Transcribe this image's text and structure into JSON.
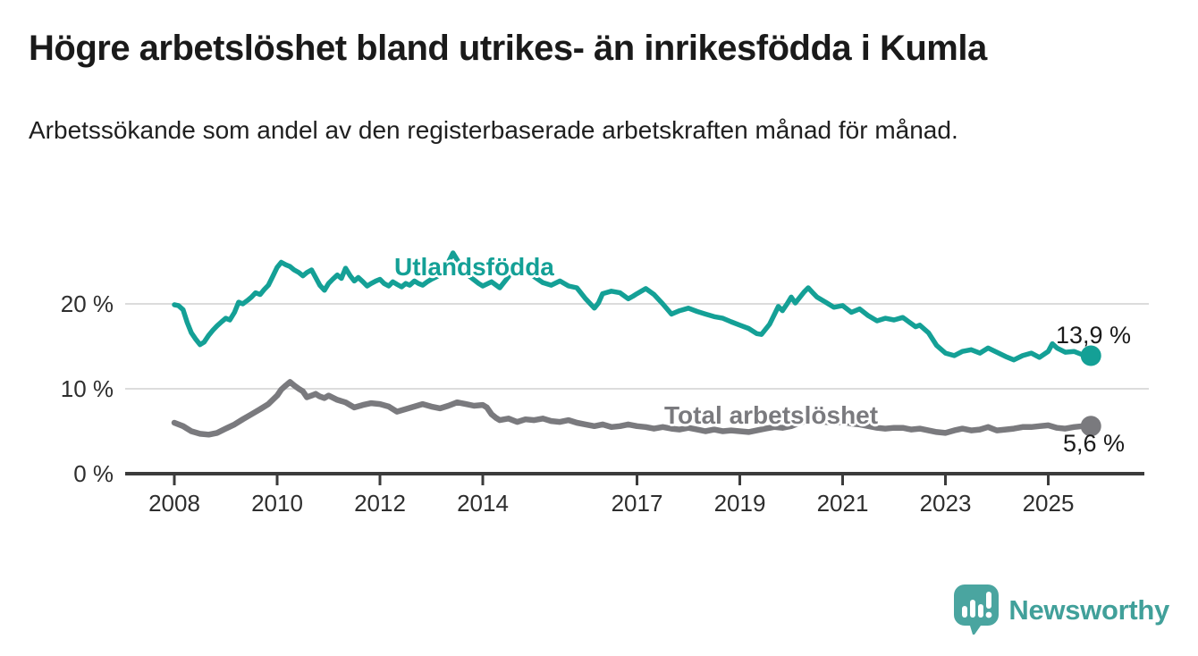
{
  "title": "Högre arbetslöshet bland utrikes- än inrikesfödda i Kumla",
  "subtitle": "Arbetssökande som andel av den registerbaserade arbetskraften månad för månad.",
  "branding": {
    "logo_text": "Newsworthy",
    "logo_icon": "speech-bubble-with-bar-chart-and-exclamation"
  },
  "colors": {
    "teal_line": "#14a096",
    "gray_line": "#7a7a7e",
    "axis": "#3b3b3b",
    "grid": "#dcdcdc",
    "tick_label": "#2e2e2e",
    "value_label": "#1a1a1a",
    "logo_bubble": "#4aa5a0",
    "logo_text": "#41a09a",
    "background": "#ffffff"
  },
  "chart_data": {
    "type": "line",
    "title": "Högre arbetslöshet bland utrikes- än inrikesfödda i Kumla",
    "subtitle": "Arbetssökande som andel av den registerbaserade arbetskraften månad för månad.",
    "unit": "%",
    "grid": "horizontal gridlines at 10 % and 20 % only",
    "legend_position": "inline labels attached to lines",
    "x_axis": {
      "range": [
        2008,
        2025.9
      ],
      "ticks": [
        2008,
        2010,
        2012,
        2014,
        2017,
        2019,
        2021,
        2023,
        2025
      ]
    },
    "y_axis": {
      "range": [
        0,
        27
      ],
      "ticks": [
        {
          "value": 0,
          "label": "0 %"
        },
        {
          "value": 10,
          "label": "10 %"
        },
        {
          "value": 20,
          "label": "20 %"
        }
      ]
    },
    "series": [
      {
        "name": "Utlandsfödda",
        "color": "#14a096",
        "end_value": 13.9,
        "end_label": "13,9 %",
        "points": [
          [
            2008.0,
            19.9
          ],
          [
            2008.08,
            19.8
          ],
          [
            2008.17,
            19.3
          ],
          [
            2008.25,
            17.8
          ],
          [
            2008.33,
            16.6
          ],
          [
            2008.42,
            15.8
          ],
          [
            2008.5,
            15.2
          ],
          [
            2008.58,
            15.5
          ],
          [
            2008.67,
            16.3
          ],
          [
            2008.75,
            16.9
          ],
          [
            2008.83,
            17.4
          ],
          [
            2008.92,
            17.9
          ],
          [
            2009.0,
            18.3
          ],
          [
            2009.08,
            18.1
          ],
          [
            2009.17,
            19.0
          ],
          [
            2009.25,
            20.2
          ],
          [
            2009.33,
            20.0
          ],
          [
            2009.42,
            20.4
          ],
          [
            2009.5,
            20.8
          ],
          [
            2009.58,
            21.3
          ],
          [
            2009.67,
            21.1
          ],
          [
            2009.75,
            21.7
          ],
          [
            2009.83,
            22.2
          ],
          [
            2009.92,
            23.3
          ],
          [
            2010.0,
            24.3
          ],
          [
            2010.08,
            24.9
          ],
          [
            2010.17,
            24.6
          ],
          [
            2010.25,
            24.4
          ],
          [
            2010.33,
            24.0
          ],
          [
            2010.42,
            23.7
          ],
          [
            2010.5,
            23.3
          ],
          [
            2010.58,
            23.7
          ],
          [
            2010.67,
            24.0
          ],
          [
            2010.75,
            23.1
          ],
          [
            2010.83,
            22.2
          ],
          [
            2010.92,
            21.6
          ],
          [
            2011.0,
            22.4
          ],
          [
            2011.08,
            22.9
          ],
          [
            2011.17,
            23.4
          ],
          [
            2011.25,
            23.0
          ],
          [
            2011.33,
            24.2
          ],
          [
            2011.42,
            23.3
          ],
          [
            2011.5,
            22.7
          ],
          [
            2011.58,
            23.1
          ],
          [
            2011.67,
            22.6
          ],
          [
            2011.75,
            22.1
          ],
          [
            2011.83,
            22.4
          ],
          [
            2011.92,
            22.7
          ],
          [
            2012.0,
            22.9
          ],
          [
            2012.08,
            22.4
          ],
          [
            2012.17,
            22.1
          ],
          [
            2012.25,
            22.6
          ],
          [
            2012.33,
            22.3
          ],
          [
            2012.42,
            22.0
          ],
          [
            2012.5,
            22.4
          ],
          [
            2012.58,
            22.2
          ],
          [
            2012.67,
            22.7
          ],
          [
            2012.75,
            22.4
          ],
          [
            2012.83,
            22.2
          ],
          [
            2012.92,
            22.6
          ],
          [
            2013.0,
            22.9
          ],
          [
            2013.17,
            23.4
          ],
          [
            2013.33,
            24.9
          ],
          [
            2013.42,
            26.0
          ],
          [
            2013.5,
            25.2
          ],
          [
            2013.58,
            24.4
          ],
          [
            2013.75,
            23.2
          ],
          [
            2013.92,
            22.4
          ],
          [
            2014.0,
            22.1
          ],
          [
            2014.17,
            22.6
          ],
          [
            2014.33,
            21.9
          ],
          [
            2014.5,
            23.2
          ],
          [
            2014.58,
            24.6
          ],
          [
            2014.67,
            23.4
          ],
          [
            2014.83,
            24.0
          ],
          [
            2015.0,
            23.2
          ],
          [
            2015.17,
            22.5
          ],
          [
            2015.33,
            22.2
          ],
          [
            2015.5,
            22.7
          ],
          [
            2015.67,
            22.1
          ],
          [
            2015.83,
            21.9
          ],
          [
            2016.0,
            20.6
          ],
          [
            2016.17,
            19.5
          ],
          [
            2016.25,
            20.1
          ],
          [
            2016.33,
            21.2
          ],
          [
            2016.5,
            21.5
          ],
          [
            2016.67,
            21.3
          ],
          [
            2016.83,
            20.6
          ],
          [
            2016.92,
            20.9
          ],
          [
            2017.0,
            21.2
          ],
          [
            2017.17,
            21.8
          ],
          [
            2017.33,
            21.1
          ],
          [
            2017.5,
            20.0
          ],
          [
            2017.67,
            18.8
          ],
          [
            2017.83,
            19.2
          ],
          [
            2018.0,
            19.5
          ],
          [
            2018.17,
            19.1
          ],
          [
            2018.33,
            18.8
          ],
          [
            2018.5,
            18.5
          ],
          [
            2018.67,
            18.3
          ],
          [
            2018.83,
            17.9
          ],
          [
            2019.0,
            17.5
          ],
          [
            2019.17,
            17.1
          ],
          [
            2019.33,
            16.5
          ],
          [
            2019.42,
            16.4
          ],
          [
            2019.58,
            17.6
          ],
          [
            2019.75,
            19.7
          ],
          [
            2019.83,
            19.2
          ],
          [
            2019.92,
            20.0
          ],
          [
            2020.0,
            20.8
          ],
          [
            2020.08,
            20.1
          ],
          [
            2020.25,
            21.4
          ],
          [
            2020.33,
            21.9
          ],
          [
            2020.42,
            21.3
          ],
          [
            2020.5,
            20.8
          ],
          [
            2020.67,
            20.2
          ],
          [
            2020.83,
            19.6
          ],
          [
            2021.0,
            19.8
          ],
          [
            2021.17,
            19.0
          ],
          [
            2021.33,
            19.4
          ],
          [
            2021.5,
            18.6
          ],
          [
            2021.67,
            18.0
          ],
          [
            2021.83,
            18.3
          ],
          [
            2022.0,
            18.1
          ],
          [
            2022.17,
            18.4
          ],
          [
            2022.33,
            17.7
          ],
          [
            2022.42,
            17.3
          ],
          [
            2022.5,
            17.5
          ],
          [
            2022.67,
            16.6
          ],
          [
            2022.83,
            15.1
          ],
          [
            2023.0,
            14.2
          ],
          [
            2023.17,
            13.9
          ],
          [
            2023.33,
            14.4
          ],
          [
            2023.5,
            14.6
          ],
          [
            2023.67,
            14.2
          ],
          [
            2023.83,
            14.8
          ],
          [
            2024.0,
            14.3
          ],
          [
            2024.17,
            13.8
          ],
          [
            2024.33,
            13.4
          ],
          [
            2024.5,
            13.9
          ],
          [
            2024.67,
            14.2
          ],
          [
            2024.83,
            13.7
          ],
          [
            2025.0,
            14.4
          ],
          [
            2025.08,
            15.3
          ],
          [
            2025.17,
            14.8
          ],
          [
            2025.33,
            14.3
          ],
          [
            2025.5,
            14.4
          ],
          [
            2025.67,
            14.0
          ],
          [
            2025.83,
            13.9
          ]
        ]
      },
      {
        "name": "Total arbetslöshet",
        "color": "#7a7a7e",
        "end_value": 5.6,
        "end_label": "5,6 %",
        "points": [
          [
            2008.0,
            6.0
          ],
          [
            2008.17,
            5.6
          ],
          [
            2008.33,
            5.0
          ],
          [
            2008.5,
            4.7
          ],
          [
            2008.67,
            4.6
          ],
          [
            2008.83,
            4.8
          ],
          [
            2009.0,
            5.3
          ],
          [
            2009.17,
            5.8
          ],
          [
            2009.33,
            6.4
          ],
          [
            2009.5,
            7.0
          ],
          [
            2009.67,
            7.6
          ],
          [
            2009.83,
            8.2
          ],
          [
            2010.0,
            9.2
          ],
          [
            2010.08,
            9.9
          ],
          [
            2010.17,
            10.4
          ],
          [
            2010.25,
            10.8
          ],
          [
            2010.33,
            10.4
          ],
          [
            2010.42,
            10.0
          ],
          [
            2010.5,
            9.7
          ],
          [
            2010.58,
            9.0
          ],
          [
            2010.67,
            9.2
          ],
          [
            2010.75,
            9.4
          ],
          [
            2010.83,
            9.1
          ],
          [
            2010.92,
            8.9
          ],
          [
            2011.0,
            9.2
          ],
          [
            2011.17,
            8.7
          ],
          [
            2011.33,
            8.4
          ],
          [
            2011.5,
            7.8
          ],
          [
            2011.67,
            8.1
          ],
          [
            2011.83,
            8.3
          ],
          [
            2012.0,
            8.2
          ],
          [
            2012.17,
            7.9
          ],
          [
            2012.33,
            7.3
          ],
          [
            2012.5,
            7.6
          ],
          [
            2012.67,
            7.9
          ],
          [
            2012.83,
            8.2
          ],
          [
            2013.0,
            7.9
          ],
          [
            2013.17,
            7.7
          ],
          [
            2013.33,
            8.0
          ],
          [
            2013.5,
            8.4
          ],
          [
            2013.67,
            8.2
          ],
          [
            2013.83,
            8.0
          ],
          [
            2014.0,
            8.1
          ],
          [
            2014.08,
            7.8
          ],
          [
            2014.17,
            7.0
          ],
          [
            2014.25,
            6.6
          ],
          [
            2014.33,
            6.3
          ],
          [
            2014.5,
            6.5
          ],
          [
            2014.67,
            6.1
          ],
          [
            2014.83,
            6.4
          ],
          [
            2015.0,
            6.3
          ],
          [
            2015.17,
            6.5
          ],
          [
            2015.33,
            6.2
          ],
          [
            2015.5,
            6.1
          ],
          [
            2015.67,
            6.3
          ],
          [
            2015.83,
            6.0
          ],
          [
            2016.0,
            5.8
          ],
          [
            2016.17,
            5.6
          ],
          [
            2016.33,
            5.8
          ],
          [
            2016.5,
            5.5
          ],
          [
            2016.67,
            5.6
          ],
          [
            2016.83,
            5.8
          ],
          [
            2017.0,
            5.6
          ],
          [
            2017.17,
            5.5
          ],
          [
            2017.33,
            5.3
          ],
          [
            2017.5,
            5.5
          ],
          [
            2017.67,
            5.3
          ],
          [
            2017.83,
            5.2
          ],
          [
            2018.0,
            5.4
          ],
          [
            2018.17,
            5.2
          ],
          [
            2018.33,
            5.0
          ],
          [
            2018.5,
            5.2
          ],
          [
            2018.67,
            5.0
          ],
          [
            2018.83,
            5.1
          ],
          [
            2019.0,
            5.0
          ],
          [
            2019.17,
            4.9
          ],
          [
            2019.33,
            5.1
          ],
          [
            2019.5,
            5.3
          ],
          [
            2019.67,
            5.5
          ],
          [
            2019.83,
            5.4
          ],
          [
            2020.0,
            5.6
          ],
          [
            2020.17,
            6.0
          ],
          [
            2020.33,
            6.3
          ],
          [
            2020.5,
            6.2
          ],
          [
            2020.67,
            6.1
          ],
          [
            2020.83,
            6.0
          ],
          [
            2021.0,
            6.1
          ],
          [
            2021.17,
            5.9
          ],
          [
            2021.33,
            5.8
          ],
          [
            2021.5,
            5.6
          ],
          [
            2021.67,
            5.4
          ],
          [
            2021.83,
            5.3
          ],
          [
            2022.0,
            5.4
          ],
          [
            2022.17,
            5.4
          ],
          [
            2022.33,
            5.2
          ],
          [
            2022.5,
            5.3
          ],
          [
            2022.67,
            5.1
          ],
          [
            2022.83,
            4.9
          ],
          [
            2023.0,
            4.8
          ],
          [
            2023.17,
            5.1
          ],
          [
            2023.33,
            5.3
          ],
          [
            2023.5,
            5.1
          ],
          [
            2023.67,
            5.2
          ],
          [
            2023.83,
            5.5
          ],
          [
            2024.0,
            5.1
          ],
          [
            2024.17,
            5.2
          ],
          [
            2024.33,
            5.3
          ],
          [
            2024.5,
            5.5
          ],
          [
            2024.67,
            5.5
          ],
          [
            2024.83,
            5.6
          ],
          [
            2025.0,
            5.7
          ],
          [
            2025.17,
            5.4
          ],
          [
            2025.33,
            5.3
          ],
          [
            2025.5,
            5.5
          ],
          [
            2025.67,
            5.6
          ],
          [
            2025.83,
            5.6
          ]
        ]
      }
    ]
  }
}
